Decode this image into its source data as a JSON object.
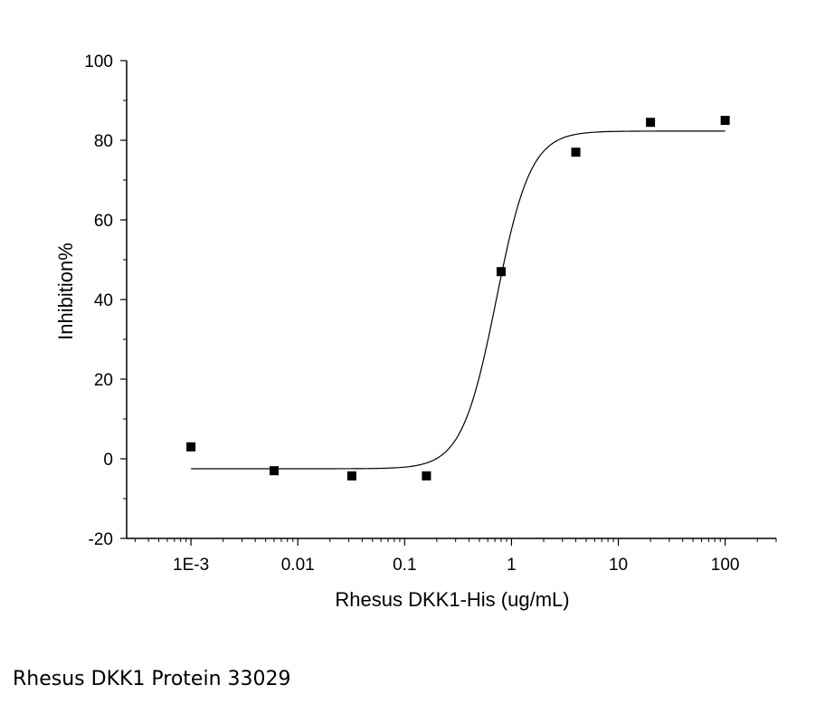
{
  "chart_data": {
    "type": "scatter",
    "x_scale": "log",
    "xlabel": "Rhesus DKK1-His (ug/mL)",
    "ylabel": "Inhibition%",
    "xlim": [
      0.00025,
      300
    ],
    "ylim": [
      -20,
      100
    ],
    "x_ticks": [
      {
        "value": 0.001,
        "label": "1E-3"
      },
      {
        "value": 0.01,
        "label": "0.01"
      },
      {
        "value": 0.1,
        "label": "0.1"
      },
      {
        "value": 1,
        "label": "1"
      },
      {
        "value": 10,
        "label": "10"
      },
      {
        "value": 100,
        "label": "100"
      }
    ],
    "y_ticks": [
      {
        "value": -20,
        "label": "-20"
      },
      {
        "value": 0,
        "label": "0"
      },
      {
        "value": 20,
        "label": "20"
      },
      {
        "value": 40,
        "label": "40"
      },
      {
        "value": 60,
        "label": "60"
      },
      {
        "value": 80,
        "label": "80"
      },
      {
        "value": 100,
        "label": "100"
      }
    ],
    "grid": false,
    "marker": "square",
    "color": "#000000",
    "points": [
      {
        "x": 0.001,
        "y": 3
      },
      {
        "x": 0.006,
        "y": -3
      },
      {
        "x": 0.032,
        "y": -4.3
      },
      {
        "x": 0.16,
        "y": -4.3
      },
      {
        "x": 0.8,
        "y": 47
      },
      {
        "x": 4,
        "y": 77
      },
      {
        "x": 20,
        "y": 84.5
      },
      {
        "x": 100,
        "y": 85
      }
    ],
    "fit": {
      "type": "four-parameter logistic",
      "bottom": -2.5,
      "top": 82.3,
      "ec50": 0.72,
      "hill": 2.7,
      "x_range": [
        0.001,
        100
      ]
    }
  },
  "caption": "Rhesus DKK1 Protein 33029"
}
